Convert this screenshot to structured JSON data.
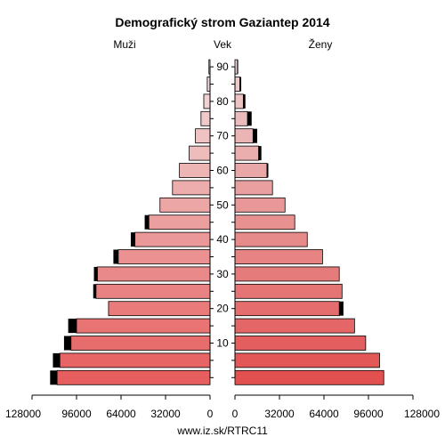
{
  "chart_data": {
    "type": "bar",
    "title": "Demografický strom Gaziantep 2014",
    "left_label": "Muži",
    "center_label": "Vek",
    "right_label": "Ženy",
    "footer": "www.iz.sk/RTRC11",
    "xlim": [
      0,
      128000
    ],
    "x_ticks_left": [
      "128000",
      "96000",
      "64000",
      "32000",
      "0"
    ],
    "x_ticks_right": [
      "0",
      "32000",
      "64000",
      "96000",
      "128000"
    ],
    "x_tick_values": [
      0,
      32000,
      64000,
      96000,
      128000
    ],
    "age_ticks": [
      "10",
      "20",
      "30",
      "40",
      "50",
      "60",
      "70",
      "80",
      "90"
    ],
    "age_groups": [
      "0-4",
      "5-9",
      "10-14",
      "15-19",
      "20-24",
      "25-29",
      "30-34",
      "35-39",
      "40-44",
      "45-49",
      "50-54",
      "55-59",
      "60-64",
      "65-69",
      "70-74",
      "75-79",
      "80-84",
      "85-89",
      "90+"
    ],
    "series": [
      {
        "name": "Muži",
        "values": [
          110000,
          108000,
          100000,
          96000,
          73000,
          82000,
          81000,
          66000,
          54000,
          44000,
          36000,
          27000,
          22000,
          15000,
          10500,
          6500,
          4500,
          2000,
          800
        ],
        "excess": [
          5000,
          5000,
          5000,
          6000,
          0,
          2000,
          2500,
          3500,
          3000,
          3000,
          0,
          0,
          0,
          0,
          0,
          0,
          0,
          0,
          0
        ]
      },
      {
        "name": "Ženy",
        "values": [
          107000,
          104000,
          94000,
          86000,
          75000,
          77000,
          75000,
          63000,
          52000,
          43000,
          36000,
          27000,
          23000,
          17000,
          13000,
          9000,
          6000,
          3500,
          1800
        ],
        "excess": [
          0,
          0,
          0,
          0,
          3000,
          0,
          0,
          0,
          0,
          0,
          0,
          0,
          1000,
          2000,
          3000,
          3000,
          1500,
          1000,
          500
        ]
      }
    ]
  }
}
